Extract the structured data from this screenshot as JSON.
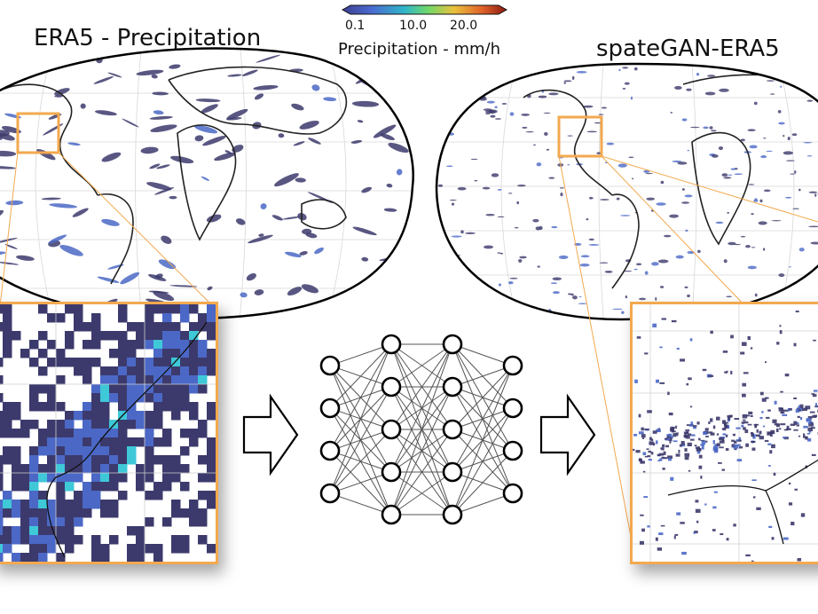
{
  "left_panel": {
    "title": "ERA5 - Precipitation"
  },
  "right_panel": {
    "title": "spateGAN-ERA5"
  },
  "colorbar": {
    "title": "Precipitation - mm/h",
    "ticks": [
      "0.1",
      "10.0",
      "20.0"
    ],
    "colors": [
      "#3b3f8f",
      "#4a6bd1",
      "#2fb6c8",
      "#6fd86a",
      "#e9c13c",
      "#e0622a",
      "#8a1a12"
    ]
  },
  "network": {
    "layers": [
      4,
      5,
      5,
      4
    ]
  },
  "colors": {
    "precip_base": "#3c3a6c",
    "precip_mid": "#4b68c6",
    "precip_high": "#3ec8d8",
    "highlight": "#f3a94f",
    "arrow": "#000000"
  },
  "icons": [
    "right-arrow-icon",
    "neural-network-icon"
  ]
}
